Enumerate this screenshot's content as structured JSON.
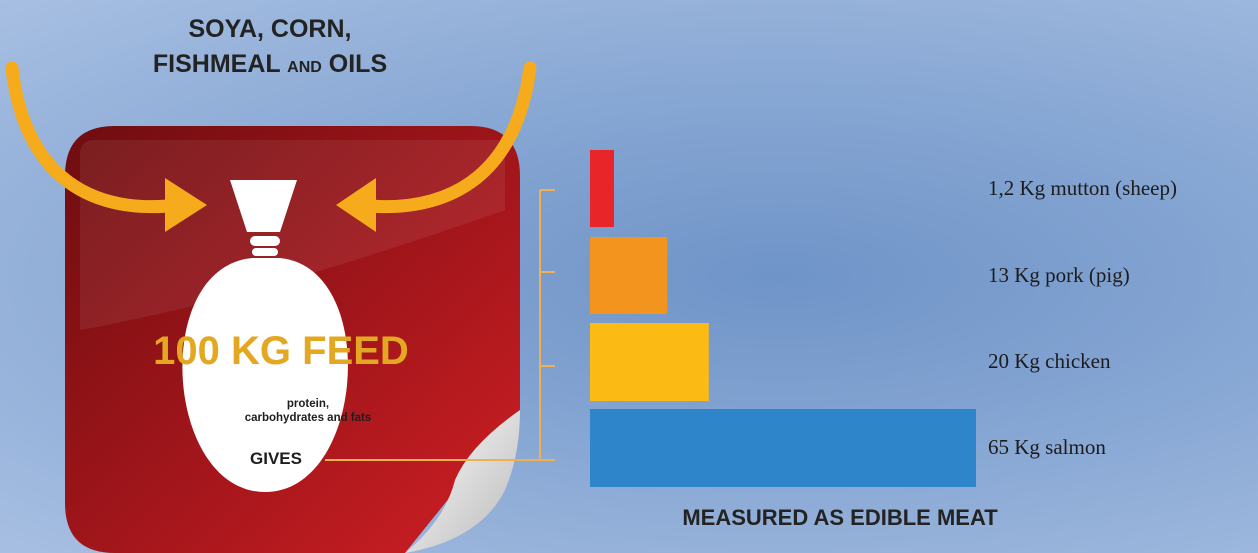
{
  "input_heading": {
    "line1": "SOYA, CORN,",
    "line2_a": "FISHMEAL",
    "line2_and": "AND",
    "line2_b": "OILS"
  },
  "feed": {
    "amount": "100 KG FEED",
    "desc_line1": "protein,",
    "desc_line2": "carbohydrates and fats",
    "gives": "GIVES"
  },
  "footer": "MEASURED AS EDIBLE MEAT",
  "colors": {
    "card": "#8a1418",
    "arrows": "#f6ab1c",
    "bag": "#ffffff",
    "bracket": "#f0b050"
  },
  "chart_data": {
    "type": "bar",
    "orientation": "horizontal",
    "unit": "Kg",
    "categories": [
      "mutton (sheep)",
      "pork (pig)",
      "chicken",
      "salmon"
    ],
    "values": [
      1.2,
      13,
      20,
      65
    ],
    "labels": [
      "1,2 Kg mutton (sheep)",
      "13 Kg pork (pig)",
      "20 Kg chicken",
      "65 Kg salmon"
    ],
    "colors": [
      "#e8262a",
      "#f3941f",
      "#fbbb14",
      "#2f85c9"
    ],
    "xlim": [
      0,
      65
    ]
  }
}
